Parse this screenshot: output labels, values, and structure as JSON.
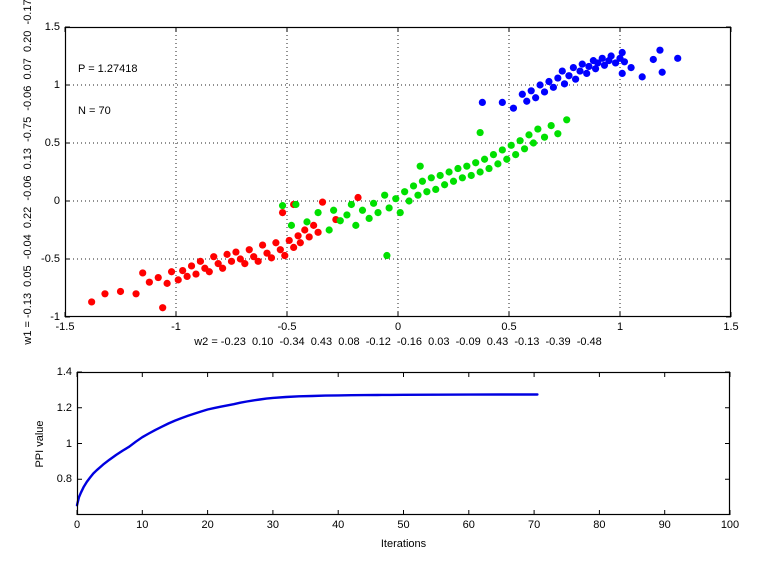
{
  "figure": {
    "background": "#ffffff",
    "axis_color": "#000000"
  },
  "chart_data": [
    {
      "id": "scatter",
      "type": "scatter",
      "title": "",
      "xlabel": "w2 = -0.23  0.10  -0.34  0.43  0.08  -0.12  -0.16  0.03  -0.09  0.43  -0.13  -0.39  -0.48",
      "ylabel": "w1 = -0.13  0.05  -0.04  0.22  -0.06  0.13  -0.75  -0.06  0.07  0.20  -0.17",
      "annotation_lines": [
        "P = 1.27418",
        "N = 70"
      ],
      "xlim": [
        -1.5,
        1.5
      ],
      "ylim": [
        -1,
        1.5
      ],
      "grid": true,
      "xticks": {
        "values": [
          -1.5,
          -1,
          -0.5,
          0,
          0.5,
          1,
          1.5
        ],
        "labels": [
          "-1.5",
          "-1",
          "-0.5",
          "0",
          "0.5",
          "1",
          "1.5"
        ]
      },
      "yticks": {
        "values": [
          -1,
          -0.5,
          0,
          0.5,
          1,
          1.5
        ],
        "labels": [
          "-1",
          "-0.5",
          "0",
          "0.5",
          "1",
          "1.5"
        ]
      },
      "series": [
        {
          "name": "cluster-red",
          "color": "#ff0000",
          "points": [
            [
              -1.38,
              -0.87
            ],
            [
              -1.32,
              -0.8
            ],
            [
              -1.25,
              -0.78
            ],
            [
              -1.18,
              -0.8
            ],
            [
              -1.15,
              -0.62
            ],
            [
              -1.12,
              -0.7
            ],
            [
              -1.08,
              -0.66
            ],
            [
              -1.06,
              -0.92
            ],
            [
              -1.04,
              -0.71
            ],
            [
              -1.02,
              -0.61
            ],
            [
              -0.99,
              -0.68
            ],
            [
              -0.97,
              -0.6
            ],
            [
              -0.95,
              -0.65
            ],
            [
              -0.93,
              -0.56
            ],
            [
              -0.91,
              -0.63
            ],
            [
              -0.89,
              -0.52
            ],
            [
              -0.87,
              -0.58
            ],
            [
              -0.85,
              -0.61
            ],
            [
              -0.83,
              -0.48
            ],
            [
              -0.81,
              -0.54
            ],
            [
              -0.79,
              -0.58
            ],
            [
              -0.77,
              -0.46
            ],
            [
              -0.75,
              -0.52
            ],
            [
              -0.73,
              -0.44
            ],
            [
              -0.71,
              -0.5
            ],
            [
              -0.69,
              -0.54
            ],
            [
              -0.67,
              -0.42
            ],
            [
              -0.65,
              -0.48
            ],
            [
              -0.63,
              -0.52
            ],
            [
              -0.61,
              -0.38
            ],
            [
              -0.59,
              -0.45
            ],
            [
              -0.57,
              -0.49
            ],
            [
              -0.55,
              -0.36
            ],
            [
              -0.53,
              -0.42
            ],
            [
              -0.51,
              -0.47
            ],
            [
              -0.49,
              -0.34
            ],
            [
              -0.47,
              -0.4
            ],
            [
              -0.45,
              -0.3
            ],
            [
              -0.44,
              -0.36
            ],
            [
              -0.42,
              -0.25
            ],
            [
              -0.4,
              -0.31
            ],
            [
              -0.38,
              -0.21
            ],
            [
              -0.36,
              -0.27
            ],
            [
              -0.34,
              -0.01
            ],
            [
              -0.28,
              -0.16
            ],
            [
              -0.52,
              -0.1
            ],
            [
              -0.47,
              -0.03
            ],
            [
              -0.18,
              0.03
            ]
          ]
        },
        {
          "name": "cluster-green",
          "color": "#00e000",
          "points": [
            [
              -0.52,
              -0.04
            ],
            [
              -0.46,
              -0.03
            ],
            [
              -0.48,
              -0.21
            ],
            [
              -0.41,
              -0.18
            ],
            [
              -0.36,
              -0.1
            ],
            [
              -0.31,
              -0.25
            ],
            [
              -0.29,
              -0.08
            ],
            [
              -0.26,
              -0.17
            ],
            [
              -0.23,
              -0.12
            ],
            [
              -0.21,
              -0.03
            ],
            [
              -0.19,
              -0.21
            ],
            [
              -0.16,
              -0.08
            ],
            [
              -0.13,
              -0.15
            ],
            [
              -0.11,
              -0.02
            ],
            [
              -0.09,
              -0.1
            ],
            [
              -0.06,
              0.05
            ],
            [
              -0.04,
              -0.06
            ],
            [
              -0.01,
              0.02
            ],
            [
              0.01,
              -0.1
            ],
            [
              0.03,
              0.08
            ],
            [
              0.05,
              0.0
            ],
            [
              0.07,
              0.13
            ],
            [
              0.09,
              0.05
            ],
            [
              0.11,
              0.17
            ],
            [
              0.13,
              0.08
            ],
            [
              -0.05,
              -0.47
            ],
            [
              0.15,
              0.2
            ],
            [
              0.17,
              0.1
            ],
            [
              0.19,
              0.22
            ],
            [
              0.21,
              0.14
            ],
            [
              0.23,
              0.25
            ],
            [
              0.25,
              0.17
            ],
            [
              0.27,
              0.28
            ],
            [
              0.29,
              0.2
            ],
            [
              0.31,
              0.3
            ],
            [
              0.33,
              0.22
            ],
            [
              0.35,
              0.33
            ],
            [
              0.37,
              0.25
            ],
            [
              0.39,
              0.36
            ],
            [
              0.41,
              0.28
            ],
            [
              0.43,
              0.4
            ],
            [
              0.45,
              0.32
            ],
            [
              0.47,
              0.44
            ],
            [
              0.49,
              0.36
            ],
            [
              0.51,
              0.48
            ],
            [
              0.53,
              0.4
            ],
            [
              0.55,
              0.52
            ],
            [
              0.57,
              0.45
            ],
            [
              0.59,
              0.57
            ],
            [
              0.61,
              0.5
            ],
            [
              0.63,
              0.62
            ],
            [
              0.66,
              0.55
            ],
            [
              0.69,
              0.65
            ],
            [
              0.72,
              0.58
            ],
            [
              0.76,
              0.7
            ],
            [
              0.37,
              0.59
            ],
            [
              0.1,
              0.3
            ]
          ]
        },
        {
          "name": "cluster-blue",
          "color": "#0000ff",
          "points": [
            [
              0.38,
              0.85
            ],
            [
              0.47,
              0.85
            ],
            [
              0.52,
              0.8
            ],
            [
              0.56,
              0.92
            ],
            [
              0.58,
              0.86
            ],
            [
              0.6,
              0.95
            ],
            [
              0.62,
              0.89
            ],
            [
              0.64,
              1.0
            ],
            [
              0.66,
              0.94
            ],
            [
              0.68,
              1.03
            ],
            [
              0.7,
              0.98
            ],
            [
              0.72,
              1.06
            ],
            [
              0.74,
              1.12
            ],
            [
              0.75,
              1.01
            ],
            [
              0.77,
              1.08
            ],
            [
              0.79,
              1.15
            ],
            [
              0.8,
              1.05
            ],
            [
              0.82,
              1.12
            ],
            [
              0.83,
              1.18
            ],
            [
              0.85,
              1.1
            ],
            [
              0.86,
              1.16
            ],
            [
              0.88,
              1.21
            ],
            [
              0.89,
              1.14
            ],
            [
              0.9,
              1.19
            ],
            [
              0.92,
              1.23
            ],
            [
              0.93,
              1.17
            ],
            [
              0.95,
              1.21
            ],
            [
              0.96,
              1.25
            ],
            [
              0.98,
              1.19
            ],
            [
              1.0,
              1.23
            ],
            [
              1.01,
              1.28
            ],
            [
              1.02,
              1.2
            ],
            [
              1.01,
              1.1
            ],
            [
              1.05,
              1.15
            ],
            [
              1.1,
              1.07
            ],
            [
              1.15,
              1.22
            ],
            [
              1.18,
              1.3
            ],
            [
              1.19,
              1.11
            ],
            [
              1.26,
              1.23
            ]
          ]
        }
      ]
    },
    {
      "id": "convergence",
      "type": "line",
      "title": "",
      "xlabel": "Iterations",
      "ylabel": "PPI value",
      "xlim": [
        0,
        100
      ],
      "ylim": [
        0.6,
        1.4
      ],
      "grid": false,
      "xticks": {
        "values": [
          0,
          10,
          20,
          30,
          40,
          50,
          60,
          70,
          80,
          90,
          100
        ],
        "labels": [
          "0",
          "10",
          "20",
          "30",
          "40",
          "50",
          "60",
          "70",
          "80",
          "90",
          "100"
        ]
      },
      "yticks": {
        "values": [
          0.8,
          1,
          1.2,
          1.4
        ],
        "labels": [
          "0.8",
          "1",
          "1.2",
          "1.4"
        ]
      },
      "final_value": 1.27418,
      "iterations_run": 70,
      "series": [
        {
          "name": "ppi-curve",
          "color": "#0000e0",
          "width": 2.4,
          "points": [
            [
              0,
              0.655
            ],
            [
              0.3,
              0.7
            ],
            [
              0.6,
              0.725
            ],
            [
              1,
              0.755
            ],
            [
              1.5,
              0.785
            ],
            [
              2,
              0.81
            ],
            [
              2.5,
              0.832
            ],
            [
              3,
              0.85
            ],
            [
              4,
              0.882
            ],
            [
              5,
              0.91
            ],
            [
              6,
              0.936
            ],
            [
              7,
              0.96
            ],
            [
              8,
              0.982
            ],
            [
              9,
              1.01
            ],
            [
              10,
              1.035
            ],
            [
              11,
              1.056
            ],
            [
              12,
              1.076
            ],
            [
              13,
              1.094
            ],
            [
              14,
              1.112
            ],
            [
              15,
              1.128
            ],
            [
              16,
              1.142
            ],
            [
              17,
              1.155
            ],
            [
              18,
              1.167
            ],
            [
              19,
              1.179
            ],
            [
              20,
              1.19
            ],
            [
              21,
              1.198
            ],
            [
              22,
              1.206
            ],
            [
              23,
              1.213
            ],
            [
              24,
              1.22
            ],
            [
              25,
              1.228
            ],
            [
              26,
              1.235
            ],
            [
              27,
              1.241
            ],
            [
              28,
              1.246
            ],
            [
              29,
              1.251
            ],
            [
              30,
              1.255
            ],
            [
              32,
              1.26
            ],
            [
              34,
              1.264
            ],
            [
              36,
              1.266
            ],
            [
              38,
              1.268
            ],
            [
              40,
              1.269
            ],
            [
              42,
              1.27
            ],
            [
              44,
              1.271
            ],
            [
              46,
              1.2715
            ],
            [
              48,
              1.272
            ],
            [
              50,
              1.2725
            ],
            [
              55,
              1.2732
            ],
            [
              60,
              1.2737
            ],
            [
              65,
              1.274
            ],
            [
              70,
              1.2742
            ],
            [
              70.5,
              1.2742
            ]
          ]
        }
      ]
    }
  ]
}
